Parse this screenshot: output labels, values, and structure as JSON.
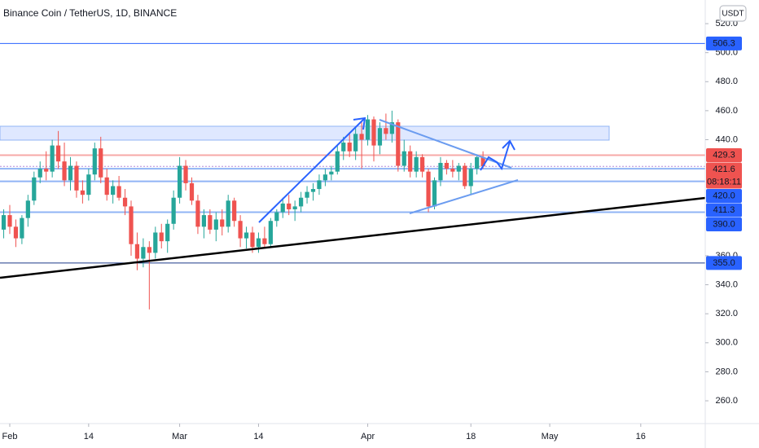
{
  "chart_data": {
    "type": "candlestick",
    "title": "Binance Coin / TetherUS, 1D, BINANCE",
    "currency": "USDT",
    "open": [
      378,
      388,
      380,
      372,
      386,
      398,
      414,
      420,
      418,
      436,
      425,
      412,
      422,
      405,
      402,
      416,
      434,
      414,
      402,
      408,
      400,
      394,
      368,
      358,
      366,
      362,
      376,
      370,
      382,
      400,
      422,
      410,
      398,
      380,
      388,
      378,
      385,
      380,
      398,
      384,
      372,
      376,
      366,
      372,
      368,
      384,
      390,
      396,
      392,
      394,
      400,
      404,
      406,
      412,
      416,
      418,
      432,
      438,
      432,
      444,
      440,
      454,
      436,
      448,
      444,
      452,
      422,
      432,
      418,
      428,
      418,
      394,
      412,
      424,
      420,
      418,
      422,
      408,
      420,
      428
    ],
    "high": [
      392,
      395,
      385,
      388,
      402,
      418,
      425,
      432,
      440,
      446,
      438,
      428,
      425,
      412,
      420,
      438,
      442,
      420,
      412,
      415,
      406,
      398,
      376,
      372,
      370,
      380,
      382,
      385,
      405,
      428,
      426,
      414,
      402,
      392,
      392,
      390,
      392,
      402,
      400,
      388,
      380,
      380,
      376,
      380,
      386,
      392,
      400,
      402,
      398,
      404,
      408,
      410,
      416,
      420,
      422,
      436,
      442,
      445,
      448,
      452,
      457,
      456,
      452,
      458,
      460,
      454,
      440,
      436,
      432,
      430,
      420,
      414,
      428,
      426,
      426,
      424,
      424,
      424,
      430,
      432
    ],
    "low": [
      372,
      375,
      366,
      368,
      380,
      395,
      410,
      412,
      414,
      420,
      408,
      405,
      400,
      396,
      398,
      412,
      410,
      398,
      396,
      398,
      388,
      360,
      350,
      352,
      323,
      358,
      365,
      362,
      378,
      396,
      405,
      395,
      375,
      372,
      375,
      370,
      374,
      376,
      380,
      366,
      365,
      362,
      362,
      365,
      366,
      380,
      386,
      388,
      384,
      390,
      396,
      398,
      402,
      408,
      412,
      416,
      426,
      428,
      426,
      420,
      436,
      425,
      430,
      440,
      438,
      418,
      418,
      414,
      414,
      414,
      390,
      392,
      408,
      416,
      414,
      412,
      406,
      402,
      416,
      420
    ],
    "close": [
      388,
      380,
      372,
      386,
      398,
      414,
      420,
      418,
      436,
      425,
      412,
      422,
      405,
      402,
      416,
      434,
      414,
      402,
      408,
      400,
      394,
      368,
      358,
      366,
      362,
      376,
      370,
      382,
      400,
      422,
      410,
      398,
      380,
      388,
      378,
      385,
      380,
      398,
      384,
      372,
      376,
      366,
      372,
      368,
      384,
      390,
      396,
      392,
      394,
      400,
      404,
      406,
      412,
      416,
      418,
      432,
      438,
      432,
      444,
      440,
      454,
      436,
      448,
      444,
      452,
      422,
      432,
      418,
      428,
      418,
      394,
      412,
      424,
      420,
      418,
      422,
      408,
      420,
      428,
      421.6
    ],
    "up_color": "#26a69a",
    "down_color": "#ef5350",
    "xlim": [
      -0.61,
      115.63
    ],
    "xticks": [
      {
        "value": 1,
        "label": "Feb"
      },
      {
        "value": 14,
        "label": "14"
      },
      {
        "value": 29,
        "label": "Mar"
      },
      {
        "value": 42,
        "label": "14"
      },
      {
        "value": 60,
        "label": "Apr"
      },
      {
        "value": 77,
        "label": "18"
      },
      {
        "value": 90,
        "label": "May"
      },
      {
        "value": 105,
        "label": "16"
      }
    ],
    "ylim": [
      244.3,
      536.3
    ],
    "yticks": [
      {
        "value": 520,
        "label": "520.0"
      },
      {
        "value": 500,
        "label": "500.0"
      },
      {
        "value": 480,
        "label": "480.0"
      },
      {
        "value": 460,
        "label": "460.0"
      },
      {
        "value": 440,
        "label": "440.0"
      },
      {
        "value": 360,
        "label": "360.0"
      },
      {
        "value": 340,
        "label": "340.0"
      },
      {
        "value": 320,
        "label": "320.0"
      },
      {
        "value": 300,
        "label": "300.0"
      },
      {
        "value": 280,
        "label": "280.0"
      },
      {
        "value": 260,
        "label": "260.0"
      }
    ],
    "price_lines": [
      {
        "value": 506.3,
        "color": "#2962ff",
        "tag_color": "#2962ff"
      },
      {
        "value": 429.3,
        "color": "#f7a9a7",
        "tag_color": "#ef5350"
      },
      {
        "value": 421.6,
        "color": "#b388d9",
        "tag_color": "#ef5350",
        "countdown": "08:18:11"
      },
      {
        "value": {
          "value": 420,
          "label": "420.0"
        },
        "color": "#90b4f5",
        "tag_color": "#2962ff"
      },
      {
        "value": 411.3,
        "color": "#90b4f5",
        "tag_color": "#2962ff"
      },
      {
        "value": {
          "value": 390,
          "label": "390.0"
        },
        "color": "#90b4f5",
        "tag_color": "#2962ff"
      },
      {
        "value": {
          "value": 355,
          "label": "355.0"
        },
        "color": "#1e3a8a",
        "tag_color": "#2962ff"
      }
    ]
  }
}
